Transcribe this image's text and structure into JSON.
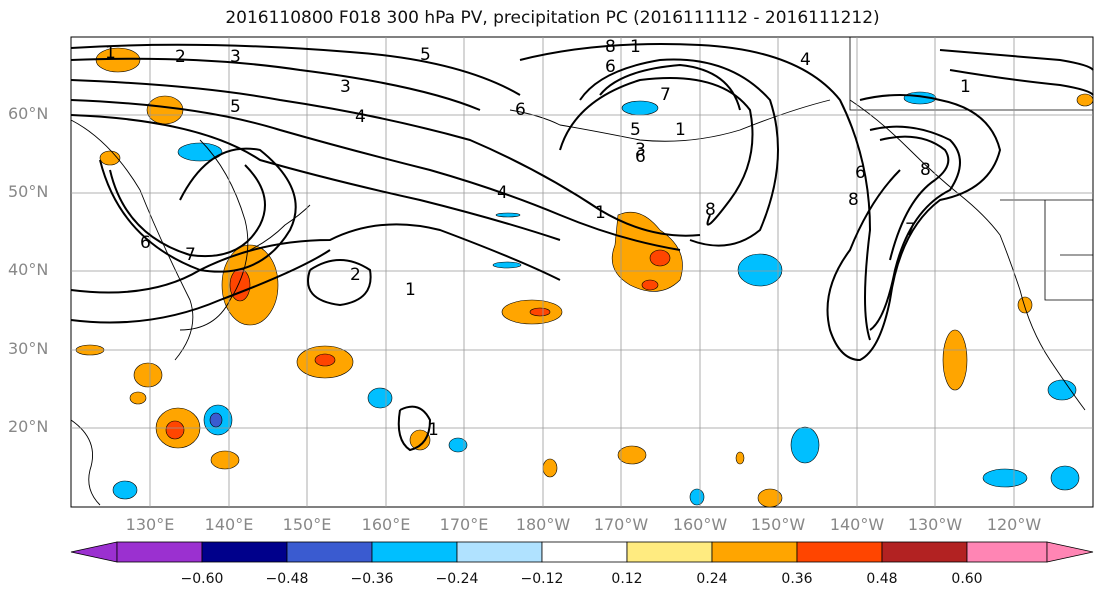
{
  "title": "2016110800 F018 300 hPa PV, precipitation PC (2016111112 - 2016111212)",
  "lat_labels": [
    "60°N",
    "50°N",
    "40°N",
    "30°N",
    "20°N"
  ],
  "lon_labels": [
    "130°E",
    "140°E",
    "150°E",
    "160°E",
    "170°E",
    "180°W",
    "170°W",
    "160°W",
    "150°W",
    "140°W",
    "130°W",
    "120°W"
  ],
  "colorbar": {
    "ticks": [
      "−0.60",
      "−0.48",
      "−0.36",
      "−0.24",
      "−0.12",
      "0.12",
      "0.24",
      "0.36",
      "0.48",
      "0.60"
    ],
    "colors": [
      "#9b30d0",
      "#00008b",
      "#3a5bd0",
      "#00bfff",
      "#b0e2ff",
      "#ffffff",
      "#ffeb80",
      "#ffa500",
      "#ff4500",
      "#b22222",
      "#ff85b4"
    ]
  },
  "contour_labels": [
    "1",
    "2",
    "3",
    "5",
    "3",
    "4",
    "5",
    "6",
    "8",
    "1",
    "6",
    "7",
    "5",
    "3",
    "1",
    "6",
    "8",
    "1",
    "4",
    "6",
    "7",
    "8",
    "6",
    "7",
    "8",
    "1",
    "2",
    "1",
    "4",
    "1"
  ]
}
